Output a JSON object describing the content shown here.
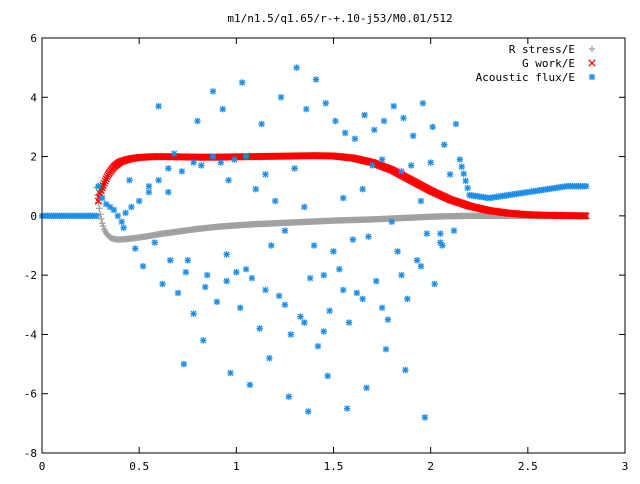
{
  "chart_data": {
    "type": "scatter",
    "title": "m1/n1.5/q1.65/r-+.10-j53/M0.01/512",
    "xlabel": "",
    "ylabel": "",
    "xlim": [
      0,
      3
    ],
    "ylim": [
      -8,
      6
    ],
    "x_ticks": [
      0,
      0.5,
      1,
      1.5,
      2,
      2.5,
      3
    ],
    "x_tick_labels": [
      "0",
      "0.5",
      "1",
      "1.5",
      "2",
      "2.5",
      "3"
    ],
    "y_ticks": [
      -8,
      -6,
      -4,
      -2,
      0,
      2,
      4,
      6
    ],
    "y_tick_labels": [
      "-8",
      "-6",
      "-4",
      "-2",
      "0",
      "2",
      "4",
      "6"
    ],
    "grid": false,
    "legend_position": "top-right",
    "series": [
      {
        "name": "R stress/E",
        "marker": "plus",
        "color": "#a0a0a0",
        "x": [
          0.28,
          0.29,
          0.3,
          0.31,
          0.32,
          0.33,
          0.34,
          0.35,
          0.36,
          0.38,
          0.4,
          0.42,
          0.45,
          0.5,
          0.55,
          0.6,
          0.7,
          0.8,
          0.9,
          1.0,
          1.1,
          1.2,
          1.3,
          1.4,
          1.5,
          1.6,
          1.7,
          1.8,
          1.9,
          2.0,
          2.1,
          2.2,
          2.3,
          2.4,
          2.5,
          2.6,
          2.7,
          2.8
        ],
        "y": [
          0.95,
          0.45,
          0.05,
          -0.25,
          -0.45,
          -0.58,
          -0.66,
          -0.72,
          -0.76,
          -0.79,
          -0.8,
          -0.79,
          -0.77,
          -0.73,
          -0.68,
          -0.62,
          -0.53,
          -0.44,
          -0.37,
          -0.32,
          -0.28,
          -0.25,
          -0.22,
          -0.19,
          -0.16,
          -0.14,
          -0.12,
          -0.09,
          -0.06,
          -0.03,
          -0.01,
          0.0,
          0.0,
          0.0,
          0.0,
          0.0,
          0.0,
          0.0
        ]
      },
      {
        "name": "G work/E",
        "marker": "cross",
        "color": "#ff0000",
        "x": [
          0.29,
          0.3,
          0.31,
          0.32,
          0.33,
          0.34,
          0.35,
          0.36,
          0.37,
          0.38,
          0.39,
          0.4,
          0.42,
          0.44,
          0.46,
          0.48,
          0.5,
          0.55,
          0.6,
          0.7,
          0.8,
          0.9,
          1.0,
          1.1,
          1.2,
          1.3,
          1.4,
          1.5,
          1.6,
          1.7,
          1.8,
          1.9,
          2.0,
          2.1,
          2.2,
          2.3,
          2.4,
          2.5,
          2.6,
          2.7,
          2.8
        ],
        "y": [
          0.5,
          0.75,
          0.95,
          1.1,
          1.25,
          1.38,
          1.48,
          1.57,
          1.65,
          1.71,
          1.76,
          1.81,
          1.86,
          1.9,
          1.93,
          1.95,
          1.97,
          1.99,
          2.0,
          1.99,
          1.98,
          1.98,
          1.99,
          2.0,
          2.01,
          2.02,
          2.03,
          2.02,
          1.95,
          1.8,
          1.55,
          1.2,
          0.85,
          0.55,
          0.33,
          0.18,
          0.09,
          0.04,
          0.02,
          0.01,
          0.0
        ]
      },
      {
        "name": "Acoustic flux/E",
        "marker": "star",
        "color": "#1e8ee6",
        "x": [
          0.0,
          0.04,
          0.08,
          0.12,
          0.16,
          0.2,
          0.24,
          0.27,
          0.29,
          0.31,
          0.33,
          0.35,
          0.37,
          0.39,
          0.41,
          0.43,
          0.46,
          0.5,
          0.55,
          0.6,
          0.65,
          0.68,
          0.72,
          0.78,
          0.82,
          0.88,
          0.92,
          0.96,
          0.99,
          1.05,
          1.1,
          1.15,
          1.2,
          1.25,
          1.3,
          1.35,
          1.4,
          1.45,
          1.5,
          1.55,
          1.6,
          1.65,
          1.7,
          1.75,
          1.8,
          1.85,
          1.9,
          1.95,
          2.0,
          2.05,
          2.1,
          2.15,
          2.2,
          2.3,
          2.4,
          2.5,
          2.6,
          2.7,
          2.8,
          0.42,
          0.48,
          0.52,
          0.58,
          0.62,
          0.66,
          0.7,
          0.74,
          0.78,
          0.84,
          0.9,
          0.95,
          1.0,
          1.02,
          1.08,
          1.12,
          1.18,
          1.22,
          1.28,
          1.33,
          1.38,
          1.42,
          1.48,
          1.53,
          1.58,
          1.62,
          1.68,
          1.72,
          1.78,
          1.83,
          1.88,
          1.93,
          1.98,
          2.02,
          2.06,
          2.12,
          0.45,
          0.55,
          0.65,
          0.75,
          0.85,
          0.95,
          1.05,
          1.15,
          1.25,
          1.35,
          1.45,
          1.55,
          1.65,
          1.75,
          1.85,
          1.95,
          2.05,
          0.6,
          0.8,
          0.88,
          0.93,
          1.03,
          1.13,
          1.23,
          1.31,
          1.36,
          1.41,
          1.46,
          1.51,
          1.56,
          1.61,
          1.66,
          1.71,
          1.76,
          1.81,
          1.86,
          1.91,
          1.96,
          2.01,
          2.07,
          2.13,
          0.73,
          0.83,
          0.97,
          1.07,
          1.17,
          1.27,
          1.37,
          1.47,
          1.57,
          1.67,
          1.77,
          1.87,
          1.97
        ],
        "y": [
          0.0,
          0.0,
          0.0,
          0.0,
          0.0,
          0.0,
          0.0,
          0.0,
          1.0,
          0.6,
          0.4,
          0.3,
          0.2,
          0.0,
          -0.2,
          0.1,
          0.3,
          0.5,
          0.8,
          1.2,
          1.6,
          2.1,
          1.5,
          1.8,
          1.7,
          2.0,
          1.8,
          1.2,
          1.9,
          2.0,
          0.9,
          1.4,
          0.5,
          -0.5,
          1.6,
          0.3,
          -1.0,
          -2.0,
          -1.2,
          0.6,
          -0.8,
          0.9,
          1.7,
          1.9,
          -0.2,
          1.5,
          1.7,
          0.5,
          1.8,
          -0.6,
          1.4,
          1.9,
          0.7,
          0.6,
          0.7,
          0.8,
          0.9,
          1.0,
          1.0,
          -0.4,
          -1.1,
          -1.7,
          -0.9,
          -2.3,
          -1.5,
          -2.6,
          -1.9,
          -3.3,
          -2.4,
          -2.9,
          -1.3,
          -1.9,
          -3.1,
          -2.1,
          -3.8,
          -1.0,
          -2.7,
          -4.0,
          -3.4,
          -2.1,
          -4.4,
          -3.2,
          -1.8,
          -3.6,
          -2.6,
          -0.7,
          -2.2,
          -3.5,
          -1.2,
          -2.8,
          -1.5,
          -0.6,
          -2.3,
          -1.0,
          -0.5,
          1.2,
          1.0,
          0.8,
          -1.5,
          -2.0,
          -2.2,
          -1.8,
          -2.5,
          -3.0,
          -3.6,
          -3.9,
          -2.5,
          -2.8,
          -3.1,
          -2.0,
          -1.7,
          -0.9,
          3.7,
          3.2,
          4.2,
          3.6,
          4.5,
          3.1,
          4.0,
          5.0,
          3.6,
          4.6,
          3.8,
          3.2,
          2.8,
          2.6,
          3.4,
          2.9,
          3.2,
          3.7,
          3.3,
          2.7,
          3.8,
          3.0,
          2.4,
          3.1,
          -5.0,
          -4.2,
          -5.3,
          -5.7,
          -4.8,
          -6.1,
          -6.6,
          -5.4,
          -6.5,
          -5.8,
          -4.5,
          -5.2,
          -6.8
        ]
      }
    ]
  }
}
